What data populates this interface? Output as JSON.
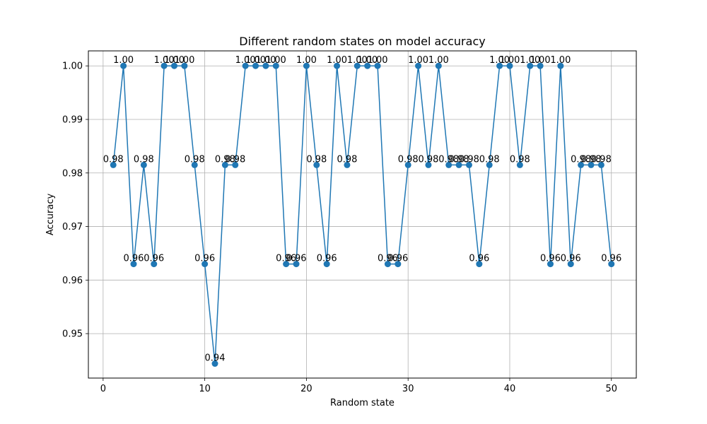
{
  "chart_data": {
    "type": "line",
    "title": "Different random states on model accuracy",
    "xlabel": "Random state",
    "ylabel": "Accuracy",
    "xlim": [
      -1.45,
      52.45
    ],
    "ylim": [
      0.9417,
      1.0028
    ],
    "grid": true,
    "x_ticks": [
      0,
      10,
      20,
      30,
      40,
      50
    ],
    "x_tick_labels": [
      "0",
      "10",
      "20",
      "30",
      "40",
      "50"
    ],
    "y_ticks": [
      0.95,
      0.96,
      0.97,
      0.98,
      0.99,
      1.0
    ],
    "y_tick_labels": [
      "0.95",
      "0.96",
      "0.97",
      "0.98",
      "0.99",
      "1.00"
    ],
    "colors": {
      "series": "#1f77b4",
      "grid": "#b0b0b0"
    },
    "series": [
      {
        "marker": "circle",
        "x": [
          1,
          2,
          3,
          4,
          5,
          6,
          7,
          8,
          9,
          10,
          11,
          12,
          13,
          14,
          15,
          16,
          17,
          18,
          19,
          20,
          21,
          22,
          23,
          24,
          25,
          26,
          27,
          28,
          29,
          30,
          31,
          32,
          33,
          34,
          35,
          36,
          37,
          38,
          39,
          40,
          41,
          42,
          43,
          44,
          45,
          46,
          47,
          48,
          49,
          50
        ],
        "values": [
          0.9815,
          1.0,
          0.963,
          0.9815,
          0.963,
          1.0,
          1.0,
          1.0,
          0.9815,
          0.963,
          0.9444,
          0.9815,
          0.9815,
          1.0,
          1.0,
          1.0,
          1.0,
          0.963,
          0.963,
          1.0,
          0.9815,
          0.963,
          1.0,
          0.9815,
          1.0,
          1.0,
          1.0,
          0.963,
          0.963,
          0.9815,
          1.0,
          0.9815,
          1.0,
          0.9815,
          0.9815,
          0.9815,
          0.963,
          0.9815,
          1.0,
          1.0,
          0.9815,
          1.0,
          1.0,
          0.963,
          1.0,
          0.963,
          0.9815,
          0.9815,
          0.9815,
          0.963
        ],
        "point_labels": [
          "0.98",
          "1.00",
          "0.96",
          "0.98",
          "0.96",
          "1.00",
          "1.00",
          "1.00",
          "0.98",
          "0.96",
          "0.94",
          "0.98",
          "0.98",
          "1.00",
          "1.00",
          "1.00",
          "1.00",
          "0.96",
          "0.96",
          "1.00",
          "0.98",
          "0.96",
          "1.00",
          "0.98",
          "1.00",
          "1.00",
          "1.00",
          "0.96",
          "0.96",
          "0.98",
          "1.00",
          "0.98",
          "1.00",
          "0.98",
          "0.98",
          "0.98",
          "0.96",
          "0.98",
          "1.00",
          "1.00",
          "0.98",
          "1.00",
          "1.00",
          "0.96",
          "1.00",
          "0.96",
          "0.98",
          "0.98",
          "0.98",
          "0.96"
        ]
      }
    ]
  }
}
